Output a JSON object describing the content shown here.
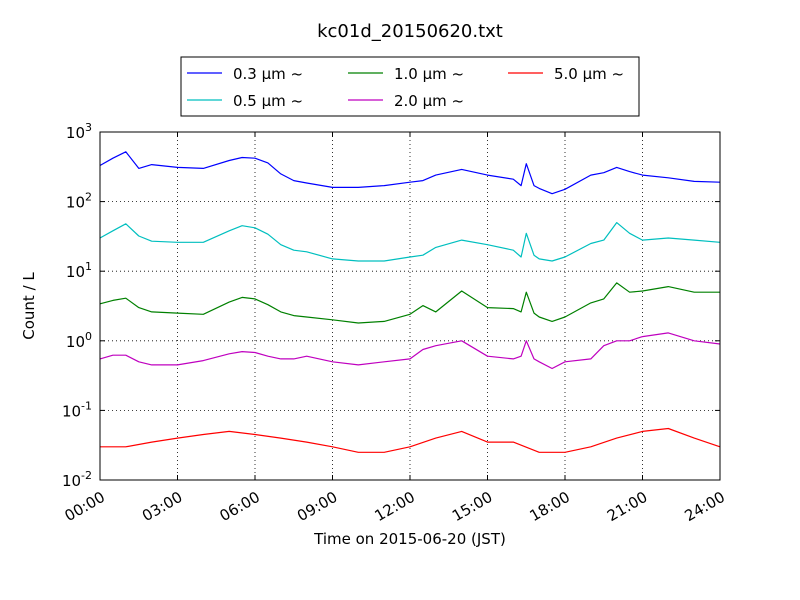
{
  "chart_data": {
    "type": "line",
    "title": "kc01d_20150620.txt",
    "xlabel": "Time on 2015-06-20 (JST)",
    "ylabel": "Count / L",
    "x_unit": "hours",
    "xlim": [
      0,
      24
    ],
    "ylim": [
      0.01,
      1000
    ],
    "yscale": "log",
    "grid": true,
    "legend_position": "top-center",
    "x_ticks": [
      {
        "value": 0,
        "label": "00:00"
      },
      {
        "value": 3,
        "label": "03:00"
      },
      {
        "value": 6,
        "label": "06:00"
      },
      {
        "value": 9,
        "label": "09:00"
      },
      {
        "value": 12,
        "label": "12:00"
      },
      {
        "value": 15,
        "label": "15:00"
      },
      {
        "value": 18,
        "label": "18:00"
      },
      {
        "value": 21,
        "label": "21:00"
      },
      {
        "value": 24,
        "label": "24:00"
      }
    ],
    "y_ticks": [
      {
        "value": 0.01,
        "base": "10",
        "exp": "-2"
      },
      {
        "value": 0.1,
        "base": "10",
        "exp": "-1"
      },
      {
        "value": 1,
        "base": "10",
        "exp": "0"
      },
      {
        "value": 10,
        "base": "10",
        "exp": "1"
      },
      {
        "value": 100,
        "base": "10",
        "exp": "2"
      },
      {
        "value": 1000,
        "base": "10",
        "exp": "3"
      }
    ],
    "series": [
      {
        "name": "0.3 μm ~",
        "color": "#0000ff",
        "x": [
          0,
          0.5,
          1,
          1.5,
          2,
          3,
          4,
          5,
          5.5,
          6,
          6.5,
          7,
          7.5,
          8,
          9,
          10,
          11,
          12,
          12.5,
          13,
          14,
          15,
          16,
          16.3,
          16.5,
          16.8,
          17,
          17.5,
          18,
          19,
          19.5,
          20,
          20.5,
          21,
          22,
          23,
          24
        ],
        "y": [
          330,
          420,
          520,
          300,
          340,
          310,
          300,
          390,
          430,
          420,
          360,
          250,
          200,
          185,
          160,
          160,
          170,
          190,
          200,
          240,
          290,
          240,
          210,
          170,
          350,
          170,
          155,
          130,
          150,
          240,
          260,
          310,
          270,
          240,
          220,
          195,
          190
        ]
      },
      {
        "name": "0.5 μm ~",
        "color": "#00bfbf",
        "x": [
          0,
          0.5,
          1,
          1.5,
          2,
          3,
          4,
          5,
          5.5,
          6,
          6.5,
          7,
          7.5,
          8,
          9,
          10,
          11,
          12,
          12.5,
          13,
          14,
          15,
          16,
          16.3,
          16.5,
          16.8,
          17,
          17.5,
          18,
          19,
          19.5,
          20,
          20.5,
          21,
          22,
          23,
          24
        ],
        "y": [
          30,
          38,
          48,
          32,
          27,
          26,
          26,
          38,
          45,
          42,
          34,
          24,
          20,
          19,
          15,
          14,
          14,
          16,
          17,
          22,
          28,
          24,
          20,
          16,
          35,
          17,
          15,
          14,
          16,
          25,
          28,
          50,
          35,
          28,
          30,
          28,
          26
        ]
      },
      {
        "name": "1.0 μm ~",
        "color": "#008000",
        "x": [
          0,
          0.5,
          1,
          1.5,
          2,
          3,
          4,
          5,
          5.5,
          6,
          6.5,
          7,
          7.5,
          8,
          9,
          10,
          11,
          12,
          12.5,
          13,
          14,
          15,
          16,
          16.3,
          16.5,
          16.8,
          17,
          17.5,
          18,
          19,
          19.5,
          20,
          20.5,
          21,
          22,
          23,
          24
        ],
        "y": [
          3.4,
          3.8,
          4.1,
          3.0,
          2.6,
          2.5,
          2.4,
          3.6,
          4.2,
          4.0,
          3.3,
          2.6,
          2.3,
          2.2,
          2.0,
          1.8,
          1.9,
          2.4,
          3.2,
          2.6,
          5.2,
          3.0,
          2.9,
          2.6,
          5.0,
          2.5,
          2.2,
          1.9,
          2.2,
          3.5,
          4.0,
          6.8,
          5.0,
          5.2,
          6.0,
          5.0,
          5.0
        ]
      },
      {
        "name": "2.0 μm ~",
        "color": "#bf00bf",
        "x": [
          0,
          0.5,
          1,
          1.5,
          2,
          3,
          4,
          5,
          5.5,
          6,
          6.5,
          7,
          7.5,
          8,
          9,
          10,
          11,
          12,
          12.5,
          13,
          14,
          15,
          16,
          16.3,
          16.5,
          16.8,
          17,
          17.5,
          18,
          19,
          19.5,
          20,
          20.5,
          21,
          22,
          23,
          24
        ],
        "y": [
          0.55,
          0.62,
          0.62,
          0.5,
          0.45,
          0.45,
          0.52,
          0.65,
          0.7,
          0.68,
          0.6,
          0.55,
          0.55,
          0.6,
          0.5,
          0.45,
          0.5,
          0.55,
          0.75,
          0.85,
          1.0,
          0.6,
          0.55,
          0.6,
          1.0,
          0.55,
          0.5,
          0.4,
          0.5,
          0.55,
          0.85,
          1.0,
          1.0,
          1.15,
          1.3,
          1.0,
          0.9
        ]
      },
      {
        "name": "5.0 μm ~",
        "color": "#ff0000",
        "x": [
          0,
          1,
          2,
          3,
          4,
          5,
          6,
          7,
          8,
          9,
          10,
          11,
          12,
          13,
          14,
          15,
          16,
          17,
          18,
          19,
          20,
          21,
          22,
          23,
          24
        ],
        "y": [
          0.03,
          0.03,
          0.035,
          0.04,
          0.045,
          0.05,
          0.045,
          0.04,
          0.035,
          0.03,
          0.025,
          0.025,
          0.03,
          0.04,
          0.05,
          0.035,
          0.035,
          0.025,
          0.025,
          0.03,
          0.04,
          0.05,
          0.055,
          0.04,
          0.03
        ]
      }
    ]
  }
}
